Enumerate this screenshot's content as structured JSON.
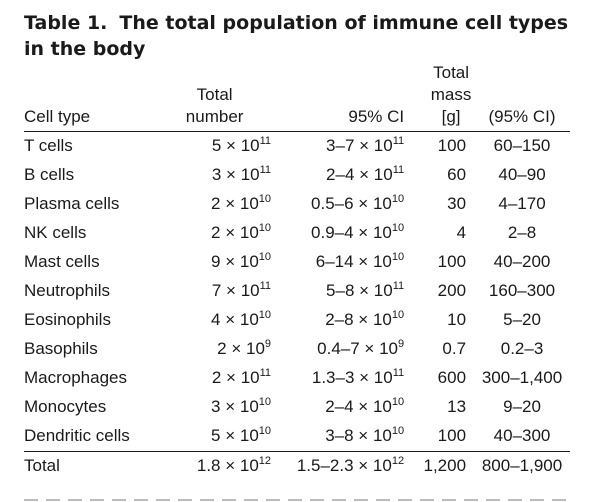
{
  "title": {
    "label": "Table 1.",
    "text": "The total population of immune cell types in the body"
  },
  "header": {
    "cell_type": "Cell type",
    "total_number_line1": "Total",
    "total_number_line2": "number",
    "ci": "95% CI",
    "mass_line1": "Total",
    "mass_line2": "mass",
    "mass_line3": "[g]",
    "mass_ci": "(95% CI)"
  },
  "rows": [
    {
      "cell": "T cells",
      "number": "5 × 10",
      "number_exp": "11",
      "ci": "3–7 × 10",
      "ci_exp": "11",
      "mass": "100",
      "mass_ci": "60–150"
    },
    {
      "cell": "B cells",
      "number": "3 × 10",
      "number_exp": "11",
      "ci": "2–4 × 10",
      "ci_exp": "11",
      "mass": "60",
      "mass_ci": "40–90"
    },
    {
      "cell": "Plasma cells",
      "number": "2 × 10",
      "number_exp": "10",
      "ci": "0.5–6 × 10",
      "ci_exp": "10",
      "mass": "30",
      "mass_ci": "4–170"
    },
    {
      "cell": "NK cells",
      "number": "2 × 10",
      "number_exp": "10",
      "ci": "0.9–4 × 10",
      "ci_exp": "10",
      "mass": "4",
      "mass_ci": "2–8"
    },
    {
      "cell": "Mast cells",
      "number": "9 × 10",
      "number_exp": "10",
      "ci": "6–14 × 10",
      "ci_exp": "10",
      "mass": "100",
      "mass_ci": "40–200"
    },
    {
      "cell": "Neutrophils",
      "number": "7 × 10",
      "number_exp": "11",
      "ci": "5–8 × 10",
      "ci_exp": "11",
      "mass": "200",
      "mass_ci": "160–300"
    },
    {
      "cell": "Eosinophils",
      "number": "4 × 10",
      "number_exp": "10",
      "ci": "2–8 × 10",
      "ci_exp": "10",
      "mass": "10",
      "mass_ci": "5–20"
    },
    {
      "cell": "Basophils",
      "number": "2 × 10",
      "number_exp": "9",
      "ci": "0.4–7 × 10",
      "ci_exp": "9",
      "mass": "0.7",
      "mass_ci": "0.2–3"
    },
    {
      "cell": "Macrophages",
      "number": "2 × 10",
      "number_exp": "11",
      "ci": "1.3–3 × 10",
      "ci_exp": "11",
      "mass": "600",
      "mass_ci": "300–1,400"
    },
    {
      "cell": "Monocytes",
      "number": "3 × 10",
      "number_exp": "10",
      "ci": "2–4 × 10",
      "ci_exp": "10",
      "mass": "13",
      "mass_ci": "9–20"
    },
    {
      "cell": "Dendritic cells",
      "number": "5 × 10",
      "number_exp": "10",
      "ci": "3–8 × 10",
      "ci_exp": "10",
      "mass": "100",
      "mass_ci": "40–300"
    }
  ],
  "total": {
    "cell": "Total",
    "number": "1.8 × 10",
    "number_exp": "12",
    "ci": "1.5–2.3 × 10",
    "ci_exp": "12",
    "mass": "1,200",
    "mass_ci": "800–1,900"
  }
}
